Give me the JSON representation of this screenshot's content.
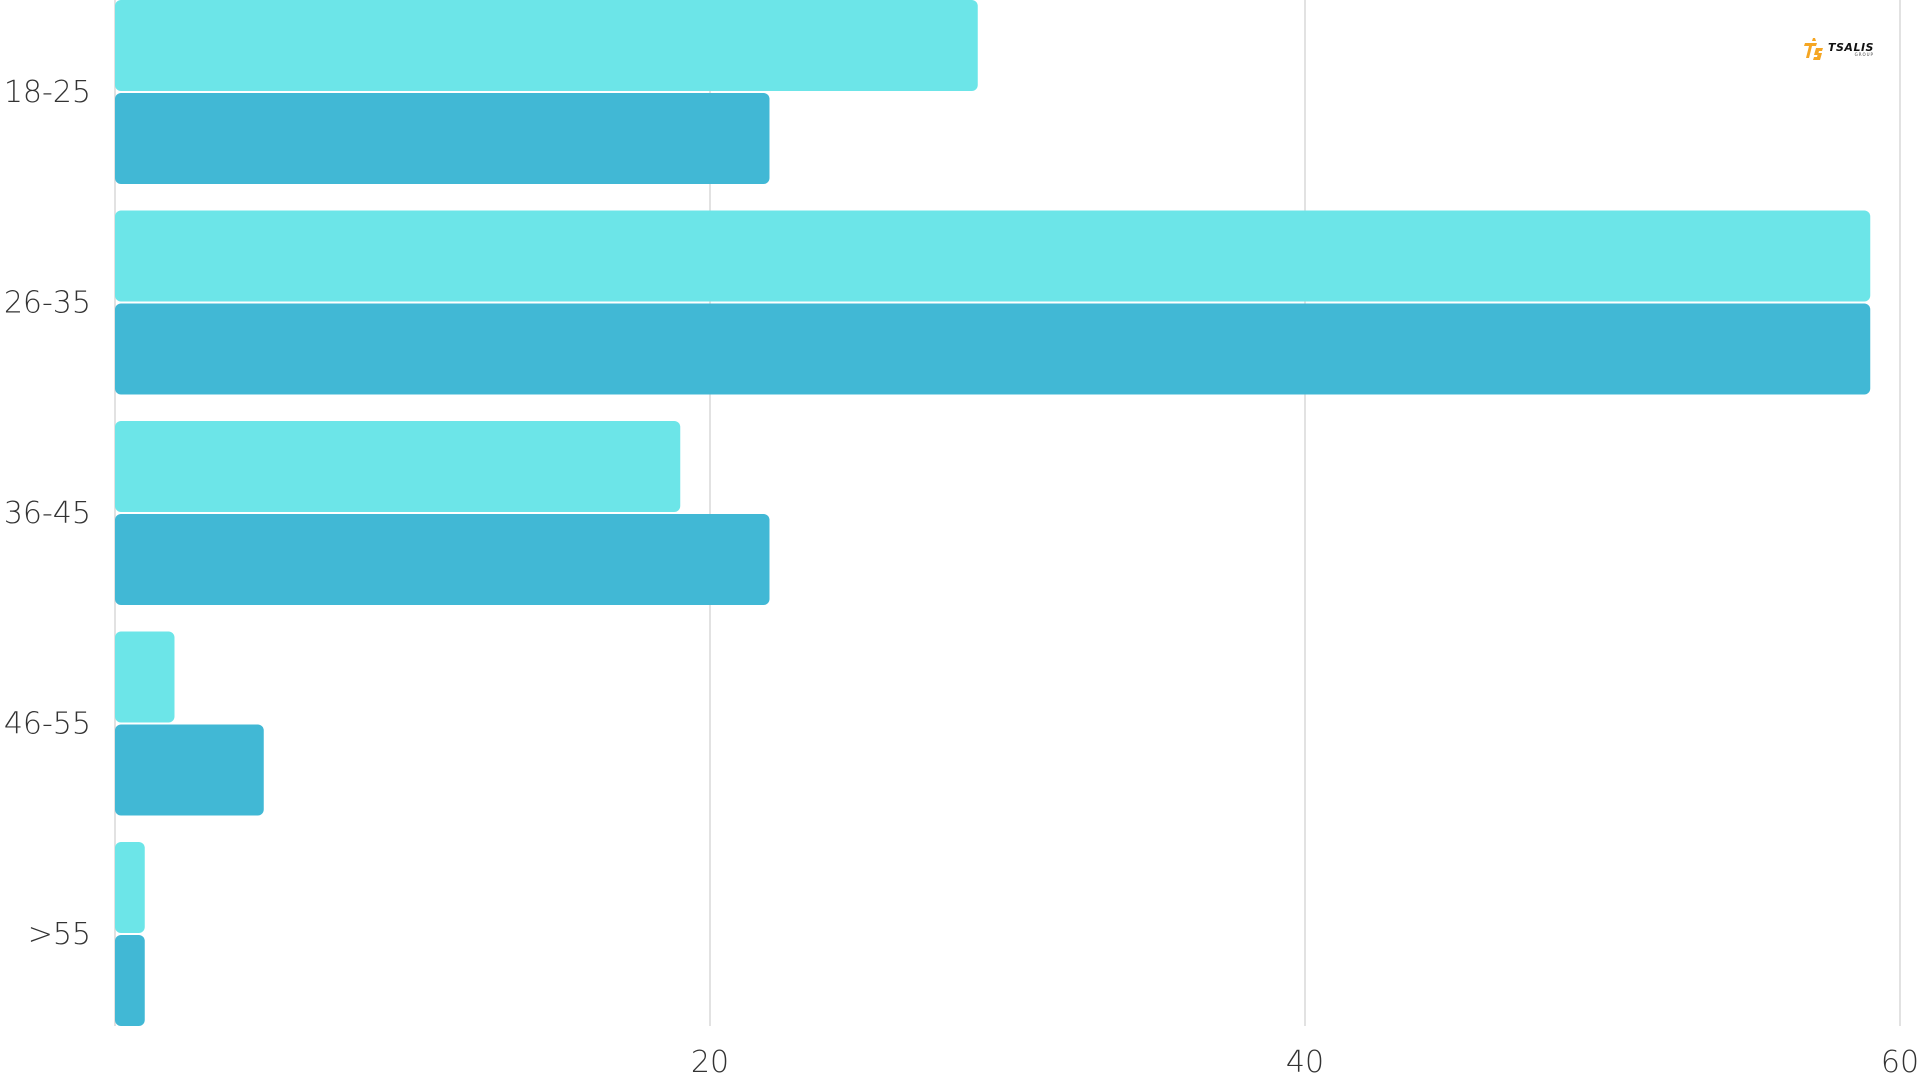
{
  "chart_data": {
    "type": "bar",
    "orientation": "horizontal",
    "categories": [
      "18-25",
      "26-35",
      "36-45",
      "46-55",
      ">55"
    ],
    "series": [
      {
        "color": "#6ce5e8",
        "values": [
          29,
          59,
          19,
          2,
          1
        ]
      },
      {
        "color": "#41b8d5",
        "values": [
          22,
          59,
          22,
          5,
          1
        ]
      }
    ],
    "x_ticks": [
      "20",
      "40",
      "60"
    ],
    "xlim": [
      0,
      60
    ],
    "xlabel": "",
    "ylabel": "",
    "title": "",
    "grid": true,
    "legend": "none"
  },
  "logo": {
    "text": "TSALIS",
    "subtext": "GROUP",
    "icon": "tsalis-logo-icon",
    "color": "#f5a623"
  }
}
